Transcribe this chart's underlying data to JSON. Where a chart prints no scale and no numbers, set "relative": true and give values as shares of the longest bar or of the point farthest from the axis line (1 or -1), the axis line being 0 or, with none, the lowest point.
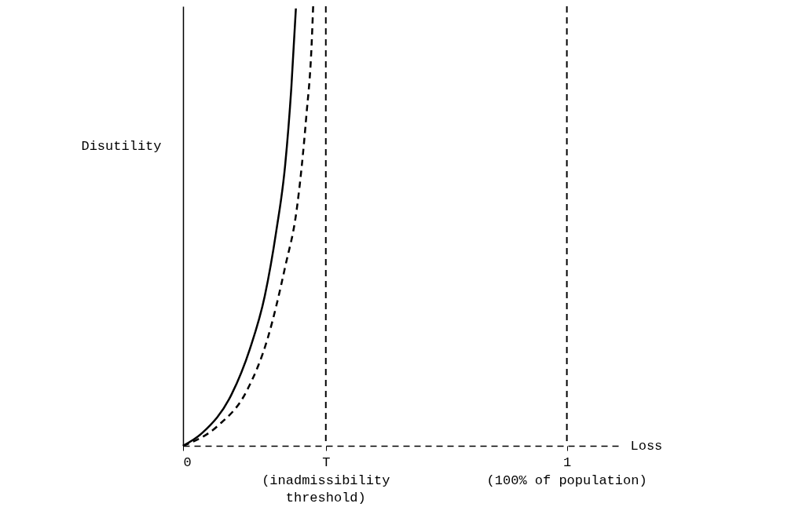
{
  "chart_data": {
    "type": "line",
    "relative": true,
    "xlabel": "Loss",
    "ylabel": "Disutility",
    "xlim": [
      0,
      1.14
    ],
    "xticks": [
      0,
      {
        "value": 0.372,
        "label": "T"
      },
      1
    ],
    "annotations": [
      "(inadmissibility\nthreshold)",
      "(100% of population)"
    ],
    "tick_labels": "x",
    "grid": false,
    "series": [
      {
        "color": "#000000",
        "line_style": "solid",
        "x": [
          0,
          0.051,
          0.127,
          0.174,
          0.213,
          0.243,
          0.266,
          0.282,
          0.294
        ],
        "values": [
          0,
          0.03,
          0.118,
          0.22,
          0.341,
          0.489,
          0.638,
          0.813,
          0.995
        ]
      },
      {
        "color": "#000000",
        "line_style": "dashed",
        "x": [
          0,
          0.09,
          0.166,
          0.221,
          0.266,
          0.297,
          0.321,
          0.335,
          0.339
        ],
        "values": [
          0,
          0.045,
          0.125,
          0.246,
          0.407,
          0.543,
          0.748,
          0.913,
          1.0
        ]
      }
    ],
    "ref_lines": [
      {
        "axis": "x",
        "value": 0.372,
        "color": "#000000",
        "line_style": "dashed"
      },
      {
        "axis": "x",
        "value": 1,
        "color": "#000000",
        "line_style": "dashed"
      }
    ]
  }
}
